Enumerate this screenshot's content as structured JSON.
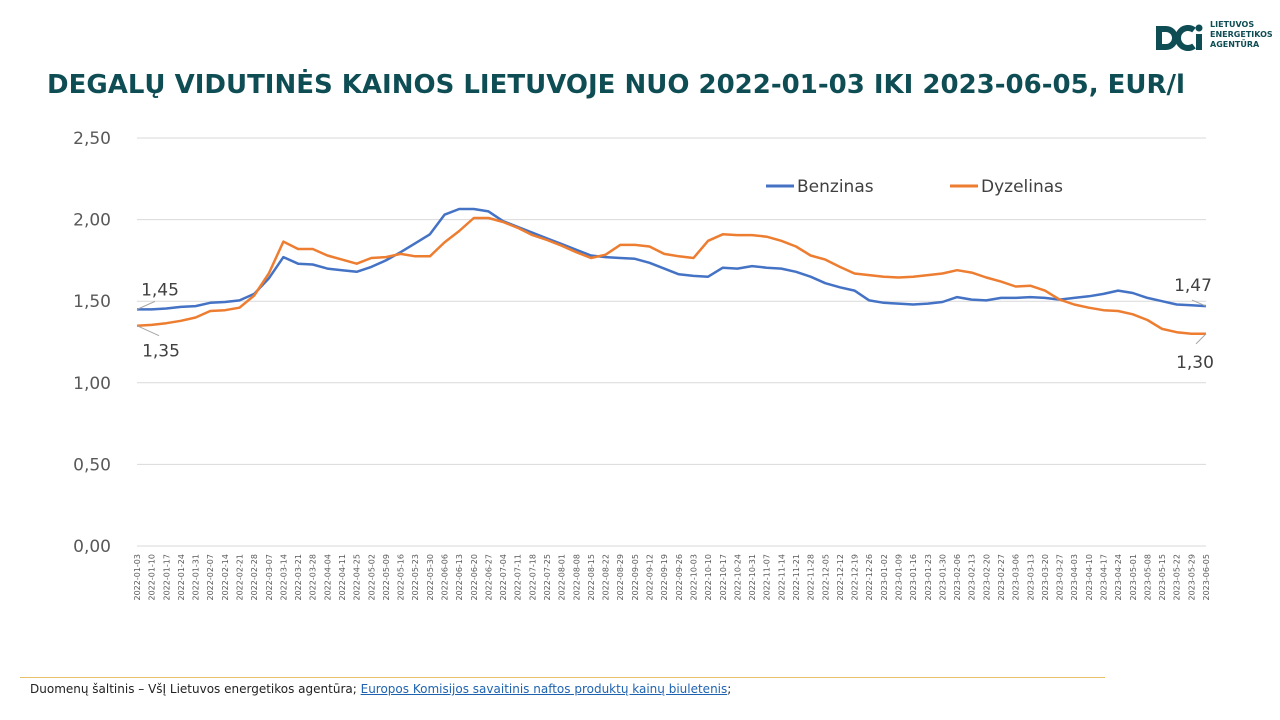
{
  "title": "DEGALŲ VIDUTINĖS KAINOS LIETUVOJE NUO 2022-01-03 IKI 2023-06-05, EUR/l",
  "logo": {
    "icon": "lea-logo-icon",
    "lines": [
      "LIETUVOS",
      "ENERGETIKOS",
      "AGENTŪRA"
    ],
    "color": "#0f4d55"
  },
  "footer": {
    "prefix": "Duomenų šaltinis – VšĮ Lietuvos energetikos agentūra; ",
    "link": "Europos Komisijos savaitinis naftos produktų kainų biuletenis",
    "suffix": ";"
  },
  "chart_data": {
    "type": "line",
    "title": "DEGALŲ VIDUTINĖS KAINOS LIETUVOJE NUO 2022-01-03 IKI 2023-06-05, EUR/l",
    "xlabel": "",
    "ylabel": "",
    "ylim": [
      0,
      2.5
    ],
    "yticks": [
      "0,00",
      "0,50",
      "1,00",
      "1,50",
      "2,00",
      "2,50"
    ],
    "grid": true,
    "legend_position": "top-right",
    "categories": [
      "2022-01-03",
      "2022-01-10",
      "2022-01-17",
      "2022-01-24",
      "2022-01-31",
      "2022-02-07",
      "2022-02-14",
      "2022-02-21",
      "2022-02-28",
      "2022-03-07",
      "2022-03-14",
      "2022-03-21",
      "2022-03-28",
      "2022-04-04",
      "2022-04-11",
      "2022-04-25",
      "2022-05-02",
      "2022-05-09",
      "2022-05-16",
      "2022-05-23",
      "2022-05-30",
      "2022-06-06",
      "2022-06-13",
      "2022-06-20",
      "2022-06-27",
      "2022-07-04",
      "2022-07-11",
      "2022-07-18",
      "2022-07-25",
      "2022-08-01",
      "2022-08-08",
      "2022-08-15",
      "2022-08-22",
      "2022-08-29",
      "2022-09-05",
      "2022-09-12",
      "2022-09-19",
      "2022-09-26",
      "2022-10-03",
      "2022-10-10",
      "2022-10-17",
      "2022-10-24",
      "2022-10-31",
      "2022-11-07",
      "2022-11-14",
      "2022-11-21",
      "2022-11-28",
      "2022-12-05",
      "2022-12-12",
      "2022-12-19",
      "2022-12-26",
      "2023-01-02",
      "2023-01-09",
      "2023-01-16",
      "2023-01-23",
      "2023-01-30",
      "2023-02-06",
      "2023-02-13",
      "2023-02-20",
      "2023-02-27",
      "2023-03-06",
      "2023-03-13",
      "2023-03-20",
      "2023-03-27",
      "2023-04-03",
      "2023-04-10",
      "2023-04-17",
      "2023-04-24",
      "2023-05-01",
      "2023-05-08",
      "2023-05-15",
      "2023-05-22",
      "2023-05-29",
      "2023-06-05"
    ],
    "series": [
      {
        "name": "Benzinas",
        "color": "#4472c4",
        "values": [
          1.45,
          1.45,
          1.455,
          1.465,
          1.47,
          1.49,
          1.495,
          1.505,
          1.545,
          1.64,
          1.77,
          1.73,
          1.725,
          1.7,
          1.69,
          1.68,
          1.71,
          1.75,
          1.8,
          1.855,
          1.91,
          2.03,
          2.065,
          2.065,
          2.05,
          1.99,
          1.955,
          1.92,
          1.885,
          1.85,
          1.815,
          1.78,
          1.77,
          1.765,
          1.76,
          1.735,
          1.7,
          1.665,
          1.655,
          1.65,
          1.705,
          1.7,
          1.715,
          1.705,
          1.7,
          1.68,
          1.65,
          1.61,
          1.585,
          1.565,
          1.505,
          1.49,
          1.485,
          1.48,
          1.485,
          1.495,
          1.525,
          1.51,
          1.505,
          1.52,
          1.52,
          1.525,
          1.52,
          1.51,
          1.52,
          1.53,
          1.545,
          1.565,
          1.55,
          1.52,
          1.5,
          1.48,
          1.475,
          1.47
        ],
        "first_label": "1,45",
        "last_label": "1,47"
      },
      {
        "name": "Dyzelinas",
        "color": "#ed7d31",
        "values": [
          1.35,
          1.355,
          1.365,
          1.38,
          1.4,
          1.44,
          1.445,
          1.46,
          1.535,
          1.67,
          1.865,
          1.82,
          1.82,
          1.78,
          1.755,
          1.73,
          1.765,
          1.77,
          1.79,
          1.775,
          1.775,
          1.86,
          1.93,
          2.01,
          2.01,
          1.985,
          1.95,
          1.905,
          1.875,
          1.84,
          1.8,
          1.765,
          1.785,
          1.845,
          1.845,
          1.835,
          1.79,
          1.775,
          1.765,
          1.87,
          1.91,
          1.905,
          1.905,
          1.895,
          1.87,
          1.835,
          1.78,
          1.755,
          1.71,
          1.67,
          1.66,
          1.65,
          1.645,
          1.65,
          1.66,
          1.67,
          1.69,
          1.675,
          1.645,
          1.62,
          1.59,
          1.595,
          1.565,
          1.51,
          1.48,
          1.46,
          1.445,
          1.44,
          1.42,
          1.385,
          1.33,
          1.31,
          1.3,
          1.3
        ],
        "first_label": "1,35",
        "last_label": "1,30"
      }
    ]
  }
}
